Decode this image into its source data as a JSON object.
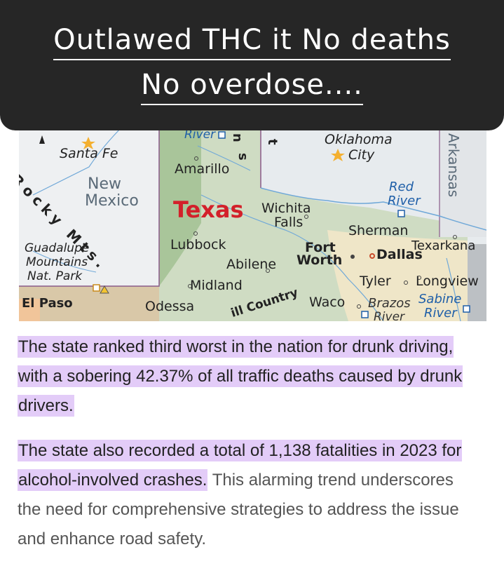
{
  "banner": {
    "line1": "Outlawed THC it No deaths",
    "line2": "No overdose...."
  },
  "map": {
    "state_label": "Texas",
    "neighbor_states": [
      "New",
      "Mexico",
      "Arkansas"
    ],
    "cities": [
      "Santa Fe",
      "Amarillo",
      "Lubbock",
      "Abilene",
      "Midland",
      "Odessa",
      "El Paso",
      "Wichita",
      "Falls",
      "Sherman",
      "Fort",
      "Worth",
      "Dallas",
      "Texarkana",
      "Tyler",
      "Longview",
      "Waco",
      "Oklahoma",
      "City"
    ],
    "water": [
      "River",
      "Red",
      "River",
      "Brazos",
      "River",
      "Sabine",
      "River"
    ],
    "regions": [
      "Rocky Mts.",
      "Guadalupe",
      "Mountains",
      "Nat. Park",
      "ill Country",
      "n",
      "s",
      "t"
    ]
  },
  "article": {
    "p1_highlight": "The state ranked third worst in the nation for drunk driving, with a sobering 42.37% of all traffic deaths caused by drunk drivers.",
    "p2_highlight": "The state also recorded a total of 1,138 fatalities in 2023 for alcohol-involved crashes.",
    "p2_rest": " This alarming trend underscores the need for comprehensive strategies to address the issue and enhance road safety."
  }
}
